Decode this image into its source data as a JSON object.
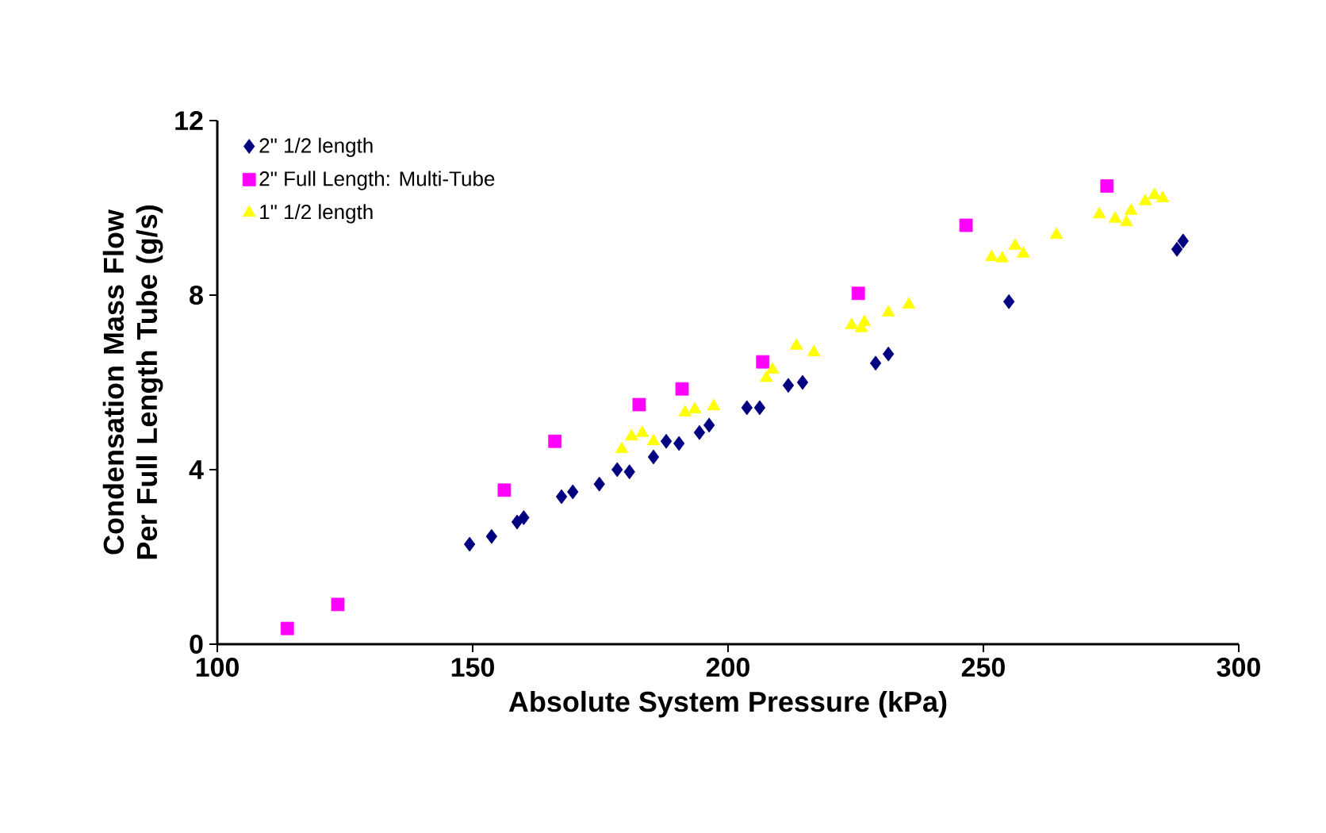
{
  "chart_data": {
    "type": "scatter",
    "xlabel": "Absolute System Pressure (kPa)",
    "ylabel": "Condensation Mass Flow Per Full Length Tube (g/s)",
    "xlim": [
      100,
      300
    ],
    "xticks": [
      100,
      150,
      200,
      250,
      300
    ],
    "ylim": [
      0,
      12
    ],
    "yticks": [
      0,
      4,
      8,
      12
    ],
    "grid": false,
    "legend": "top left",
    "series": [
      {
        "name": "2\" 1/2 length",
        "color": "#000080",
        "marker": "diamond",
        "x": [
          149.4,
          153.7,
          158.7,
          160,
          167.4,
          169.6,
          174.8,
          178.3,
          180.7,
          185.4,
          187.9,
          190.4,
          194.4,
          196.3,
          203.7,
          206.2,
          211.8,
          214.6,
          228.9,
          231.4,
          255,
          287.9,
          289.1
        ],
        "values": [
          2.29,
          2.47,
          2.8,
          2.9,
          3.38,
          3.49,
          3.67,
          4.0,
          3.95,
          4.29,
          4.65,
          4.6,
          4.85,
          5.02,
          5.42,
          5.42,
          5.93,
          6.0,
          6.44,
          6.65,
          7.85,
          9.05,
          9.24
        ]
      },
      {
        "name": "2\" Full Length: Multi-Tube",
        "color": "#ff00ff",
        "marker": "square",
        "x": [
          113.7,
          123.6,
          156.2,
          166.1,
          182.6,
          191,
          206.8,
          225.5,
          246.6,
          274.2
        ],
        "values": [
          0.36,
          0.91,
          3.53,
          4.65,
          5.49,
          5.85,
          6.47,
          8.04,
          9.6,
          10.5
        ]
      },
      {
        "name": "1\" 1/2 length",
        "color": "#ffff00",
        "marker": "triangle",
        "x": [
          179.2,
          181.1,
          183.2,
          185.4,
          191.6,
          193.5,
          197.2,
          207.5,
          208.7,
          213.4,
          216.8,
          224.2,
          226.1,
          226.7,
          231.4,
          235.4,
          251.6,
          253.7,
          256.2,
          257.8,
          264.3,
          272.7,
          275.8,
          278,
          278.9,
          281.7,
          283.5,
          285.1
        ],
        "values": [
          4.47,
          4.76,
          4.84,
          4.65,
          5.31,
          5.38,
          5.45,
          6.1,
          6.29,
          6.84,
          6.69,
          7.31,
          7.24,
          7.38,
          7.6,
          7.78,
          8.87,
          8.84,
          9.13,
          8.95,
          9.38,
          9.85,
          9.75,
          9.67,
          9.93,
          10.15,
          10.29,
          10.22
        ]
      }
    ]
  }
}
